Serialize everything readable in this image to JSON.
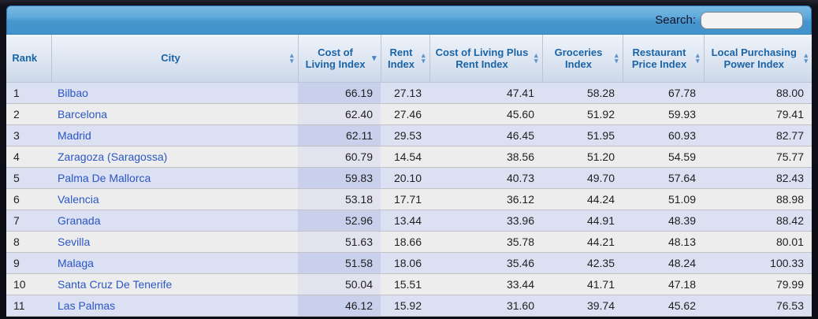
{
  "toolbar": {
    "search_label": "Search:",
    "search_value": "",
    "search_placeholder": ""
  },
  "table": {
    "columns": [
      {
        "label": "Rank",
        "sort": "none"
      },
      {
        "label": "City",
        "sort": "both"
      },
      {
        "label": "Cost of Living Index",
        "sort": "desc"
      },
      {
        "label": "Rent Index",
        "sort": "both"
      },
      {
        "label": "Cost of Living Plus Rent Index",
        "sort": "both"
      },
      {
        "label": "Groceries Index",
        "sort": "both"
      },
      {
        "label": "Restaurant Price Index",
        "sort": "both"
      },
      {
        "label": "Local Purchasing Power Index",
        "sort": "both"
      }
    ],
    "sorted_column": "Cost of Living Index",
    "sorted_direction": "descending",
    "rows": [
      {
        "rank": "1",
        "city": "Bilbao",
        "values": [
          "66.19",
          "27.13",
          "47.41",
          "58.28",
          "67.78",
          "88.00"
        ]
      },
      {
        "rank": "2",
        "city": "Barcelona",
        "values": [
          "62.40",
          "27.46",
          "45.60",
          "51.92",
          "59.93",
          "79.41"
        ]
      },
      {
        "rank": "3",
        "city": "Madrid",
        "values": [
          "62.11",
          "29.53",
          "46.45",
          "51.95",
          "60.93",
          "82.77"
        ]
      },
      {
        "rank": "4",
        "city": "Zaragoza (Saragossa)",
        "values": [
          "60.79",
          "14.54",
          "38.56",
          "51.20",
          "54.59",
          "75.77"
        ]
      },
      {
        "rank": "5",
        "city": "Palma De Mallorca",
        "values": [
          "59.83",
          "20.10",
          "40.73",
          "49.70",
          "57.64",
          "82.43"
        ]
      },
      {
        "rank": "6",
        "city": "Valencia",
        "values": [
          "53.18",
          "17.71",
          "36.12",
          "44.24",
          "51.09",
          "88.98"
        ]
      },
      {
        "rank": "7",
        "city": "Granada",
        "values": [
          "52.96",
          "13.44",
          "33.96",
          "44.91",
          "48.39",
          "88.42"
        ]
      },
      {
        "rank": "8",
        "city": "Sevilla",
        "values": [
          "51.63",
          "18.66",
          "35.78",
          "44.21",
          "48.13",
          "80.01"
        ]
      },
      {
        "rank": "9",
        "city": "Malaga",
        "values": [
          "51.58",
          "18.06",
          "35.46",
          "42.35",
          "48.24",
          "100.33"
        ]
      },
      {
        "rank": "10",
        "city": "Santa Cruz De Tenerife",
        "values": [
          "50.04",
          "15.51",
          "33.44",
          "41.71",
          "47.18",
          "79.99"
        ]
      },
      {
        "rank": "11",
        "city": "Las Palmas",
        "values": [
          "46.12",
          "15.92",
          "31.60",
          "39.74",
          "45.62",
          "76.53"
        ]
      }
    ]
  },
  "icons": {
    "sort_both": "sort-both-icon",
    "sort_desc": "sort-desc-icon"
  },
  "colors": {
    "toolbar_blue": "#4696ce",
    "header_text_blue": "#1a64a8",
    "link_blue": "#2a56c6",
    "row_odd": "#dbe0f3",
    "row_odd_sorted": "#c9d0ec",
    "row_even": "#ededed",
    "row_even_sorted": "#e2e3ef",
    "background_dark": "#0d0d16"
  }
}
